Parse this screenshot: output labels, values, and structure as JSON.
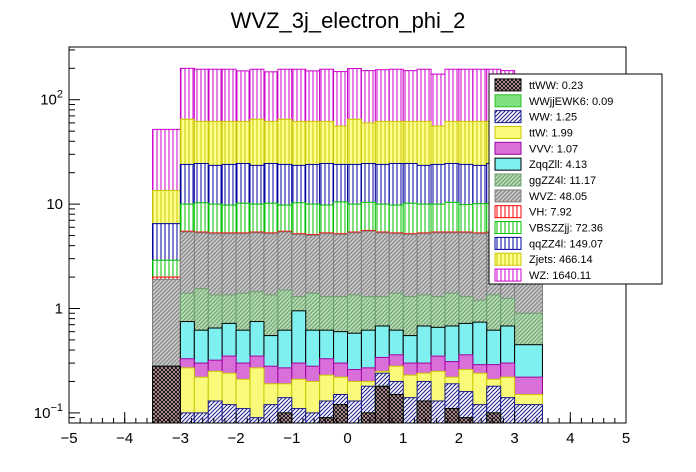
{
  "chart_data": {
    "type": "bar",
    "stacked": true,
    "yscale": "log",
    "title": "WVZ_3j_electron_phi_2",
    "xlabel": "",
    "ylabel": "",
    "xlim": [
      -5,
      5
    ],
    "ylim": [
      0.08,
      320
    ],
    "x_ticks": [
      "-5",
      "-4",
      "-3",
      "-2",
      "-1",
      "0",
      "1",
      "2",
      "3",
      "4",
      "5"
    ],
    "y_ticks": [
      {
        "value": 0.1,
        "label": "10^-1"
      },
      {
        "value": 1,
        "label": "1"
      },
      {
        "value": 10,
        "label": "10"
      },
      {
        "value": 100,
        "label": "10^2"
      }
    ],
    "bins": [
      -3.5,
      -3.0,
      -2.75,
      -2.5,
      -2.25,
      -2.0,
      -1.75,
      -1.5,
      -1.25,
      -1.0,
      -0.75,
      -0.5,
      -0.25,
      0.0,
      0.25,
      0.5,
      0.75,
      1.0,
      1.25,
      1.5,
      1.75,
      2.0,
      2.25,
      2.5,
      2.75,
      3.0,
      3.5
    ],
    "cumulative_tops": [
      {
        "name": "ttWW",
        "values": [
          0.28,
          0.05,
          0.06,
          0.08,
          0.06,
          0.07,
          0.05,
          0.08,
          0.1,
          0.07,
          0.06,
          0.09,
          0.12,
          0.07,
          0.1,
          0.18,
          0.15,
          0.08,
          0.13,
          0.07,
          0.11,
          0.09,
          0.06,
          0.1,
          0.08,
          0.06
        ]
      },
      {
        "name": "WWjjEWK6",
        "values": [
          0.28,
          0.05,
          0.06,
          0.08,
          0.06,
          0.07,
          0.05,
          0.08,
          0.1,
          0.07,
          0.06,
          0.09,
          0.12,
          0.07,
          0.1,
          0.18,
          0.15,
          0.08,
          0.13,
          0.07,
          0.11,
          0.09,
          0.06,
          0.1,
          0.08,
          0.06
        ]
      },
      {
        "name": "WW",
        "values": [
          0.28,
          0.1,
          0.1,
          0.13,
          0.12,
          0.11,
          0.09,
          0.12,
          0.14,
          0.11,
          0.1,
          0.13,
          0.15,
          0.13,
          0.18,
          0.24,
          0.2,
          0.14,
          0.2,
          0.13,
          0.19,
          0.16,
          0.12,
          0.18,
          0.14,
          0.12
        ]
      },
      {
        "name": "ttW",
        "values": [
          0.28,
          0.27,
          0.22,
          0.25,
          0.24,
          0.21,
          0.27,
          0.19,
          0.19,
          0.21,
          0.2,
          0.23,
          0.22,
          0.2,
          0.2,
          0.25,
          0.28,
          0.23,
          0.24,
          0.25,
          0.22,
          0.26,
          0.24,
          0.21,
          0.22,
          0.15
        ]
      },
      {
        "name": "VVV",
        "values": [
          0.28,
          0.33,
          0.3,
          0.32,
          0.35,
          0.3,
          0.35,
          0.28,
          0.27,
          0.3,
          0.28,
          0.33,
          0.3,
          0.26,
          0.27,
          0.34,
          0.36,
          0.3,
          0.3,
          0.35,
          0.31,
          0.36,
          0.29,
          0.29,
          0.3,
          0.22
        ]
      },
      {
        "name": "ZqqZll",
        "values": [
          0.28,
          0.75,
          0.62,
          0.65,
          0.72,
          0.62,
          0.75,
          0.55,
          0.62,
          0.95,
          0.62,
          0.62,
          0.6,
          0.58,
          0.62,
          0.68,
          0.62,
          0.55,
          0.68,
          0.66,
          0.68,
          0.72,
          0.74,
          0.62,
          0.68,
          0.45
        ]
      },
      {
        "name": "ggZZ4l",
        "values": [
          0.28,
          1.4,
          1.55,
          1.35,
          1.35,
          1.4,
          1.45,
          1.35,
          1.5,
          1.3,
          1.4,
          1.3,
          1.3,
          1.35,
          1.3,
          1.3,
          1.4,
          1.3,
          1.35,
          1.3,
          1.4,
          1.3,
          1.2,
          1.35,
          1.25,
          0.9
        ]
      },
      {
        "name": "WVZ",
        "values": [
          1.9,
          5.4,
          5.3,
          5.2,
          5.2,
          5.2,
          5.3,
          5.2,
          5.4,
          5.1,
          5.0,
          5.2,
          5.1,
          5.3,
          5.5,
          5.3,
          5.2,
          5.1,
          5.2,
          5.3,
          5.3,
          5.3,
          5.2,
          5.3,
          5.2,
          1.9
        ]
      },
      {
        "name": "VH",
        "values": [
          2.0,
          5.5,
          5.4,
          5.3,
          5.3,
          5.3,
          5.4,
          5.3,
          5.5,
          5.2,
          5.1,
          5.3,
          5.2,
          5.4,
          5.6,
          5.4,
          5.3,
          5.2,
          5.3,
          5.4,
          5.4,
          5.4,
          5.3,
          5.4,
          5.3,
          2.0
        ]
      },
      {
        "name": "VBSZZjj",
        "values": [
          2.9,
          10.0,
          10.3,
          10.0,
          9.8,
          10.2,
          10.0,
          10.2,
          9.8,
          10.3,
          10.0,
          9.8,
          10.5,
          10.0,
          10.4,
          10.0,
          9.8,
          10.2,
          10.0,
          10.0,
          10.4,
          9.9,
          10.1,
          10.2,
          10.0,
          3.0
        ]
      },
      {
        "name": "qqZZ4l",
        "values": [
          6.5,
          24.0,
          24.5,
          23.5,
          24.0,
          24.5,
          23.5,
          24.5,
          24.0,
          23.5,
          24.0,
          24.5,
          24.0,
          24.0,
          24.5,
          24.0,
          24.5,
          24.5,
          23.5,
          24.0,
          24.5,
          24.0,
          23.5,
          24.5,
          24.0,
          6.0
        ]
      },
      {
        "name": "Zjets",
        "values": [
          13.5,
          65.0,
          62.0,
          62.0,
          62.0,
          62.0,
          65.0,
          62.0,
          65.0,
          62.0,
          62.0,
          62.0,
          56.0,
          65.0,
          60.0,
          62.0,
          62.0,
          62.0,
          62.0,
          56.0,
          62.0,
          62.0,
          62.0,
          62.0,
          62.0,
          15.0
        ]
      },
      {
        "name": "WZ",
        "values": [
          52.0,
          200.0,
          196.0,
          196.0,
          196.0,
          189.0,
          196.0,
          185.0,
          196.0,
          196.0,
          189.0,
          196.0,
          186.0,
          199.0,
          190.0,
          194.0,
          196.0,
          190.0,
          196.0,
          176.0,
          196.0,
          196.0,
          196.0,
          196.0,
          190.0,
          54.0
        ]
      }
    ],
    "series": [
      {
        "name": "ttWW",
        "label": "ttWW: 0.23",
        "fill": "#c8a0a8",
        "hatch": "cross",
        "line": "#000000"
      },
      {
        "name": "WWjjEWK6",
        "label": "WWjjEWK6: 0.09",
        "fill": "#7ee07e",
        "hatch": "solid",
        "line": "#2cbf2c"
      },
      {
        "name": "WW",
        "label": "WW: 1.25",
        "fill": "#ffffff",
        "hatch": "diagonal",
        "line": "#1a1a8a"
      },
      {
        "name": "ttW",
        "label": "ttW: 1.99",
        "fill": "#fafa7a",
        "hatch": "solid",
        "line": "#c8c800"
      },
      {
        "name": "VVV",
        "label": "VVV: 1.07",
        "fill": "#d96fd9",
        "hatch": "solid",
        "line": "#a000a0"
      },
      {
        "name": "ZqqZll",
        "label": "ZqqZll: 4.13",
        "fill": "#7ef0f0",
        "hatch": "solid",
        "line": "#000000"
      },
      {
        "name": "ggZZ4l",
        "label": "ggZZ4l: 11.17",
        "fill": "#b5dcb5",
        "hatch": "diagonal",
        "line": "#6fa06f"
      },
      {
        "name": "WVZ",
        "label": "WVZ: 48.05",
        "fill": "#c8c8c8",
        "hatch": "diagonal",
        "line": "#808080"
      },
      {
        "name": "VH",
        "label": "VH: 7.92",
        "fill": "#ffffff",
        "hatch": "vertical",
        "line": "#ff0000"
      },
      {
        "name": "VBSZZjj",
        "label": "VBSZZjj: 72.36",
        "fill": "#ffffff",
        "hatch": "vertical",
        "line": "#00c000"
      },
      {
        "name": "qqZZ4l",
        "label": "qqZZ4l: 149.07",
        "fill": "#ffffff",
        "hatch": "vertical",
        "line": "#0000a0"
      },
      {
        "name": "Zjets",
        "label": "Zjets: 466.14",
        "fill": "#ffff90",
        "hatch": "vertical",
        "line": "#c8c800"
      },
      {
        "name": "WZ",
        "label": "WZ: 1640.11",
        "fill": "#ffffff",
        "hatch": "vertical",
        "line": "#cc00cc"
      }
    ]
  }
}
